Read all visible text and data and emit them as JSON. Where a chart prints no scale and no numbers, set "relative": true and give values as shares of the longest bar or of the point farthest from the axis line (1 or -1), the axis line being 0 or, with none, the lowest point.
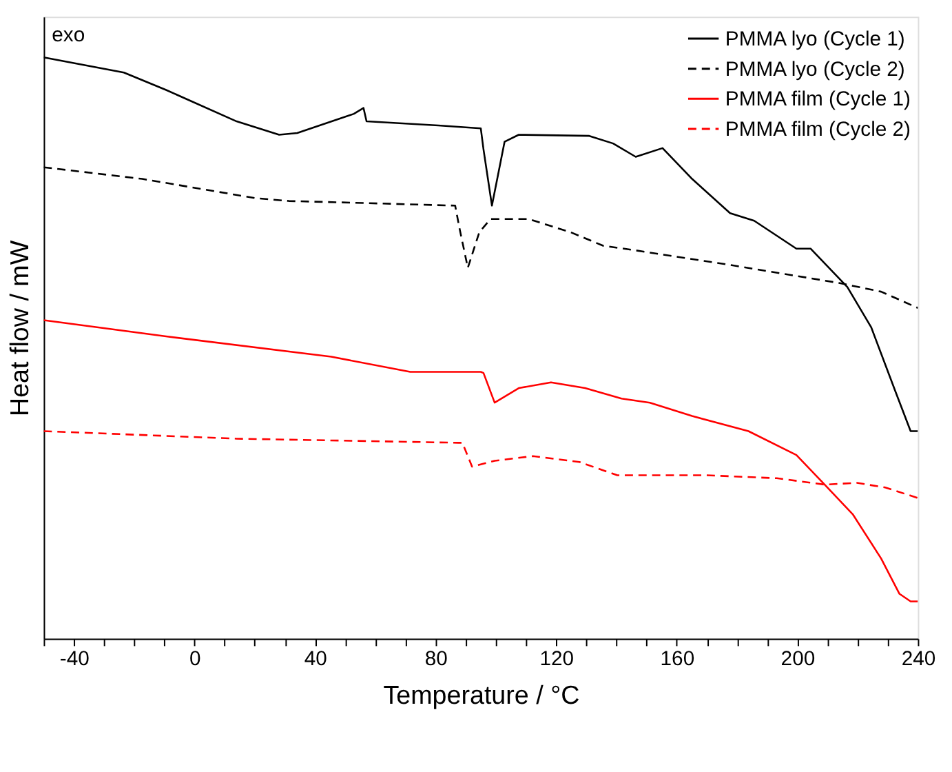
{
  "chart_data": {
    "type": "line",
    "relative": true,
    "xlabel": "Temperature / °C",
    "ylabel": "Heat flow / mW",
    "annotations": [
      "exo"
    ],
    "xlim": [
      -50,
      240
    ],
    "xticks": [
      {
        "value": -50,
        "label": null
      },
      -40,
      {
        "value": -30,
        "label": null
      },
      {
        "value": -20,
        "label": null
      },
      {
        "value": -10,
        "label": null
      },
      0,
      {
        "value": 10,
        "label": null
      },
      {
        "value": 20,
        "label": null
      },
      {
        "value": 30,
        "label": null
      },
      40,
      {
        "value": 50,
        "label": null
      },
      {
        "value": 60,
        "label": null
      },
      {
        "value": 70,
        "label": null
      },
      80,
      {
        "value": 90,
        "label": null
      },
      {
        "value": 100,
        "label": null
      },
      {
        "value": 110,
        "label": null
      },
      120,
      {
        "value": 130,
        "label": null
      },
      {
        "value": 140,
        "label": null
      },
      {
        "value": 150,
        "label": null
      },
      160,
      {
        "value": 170,
        "label": null
      },
      {
        "value": 180,
        "label": null
      },
      {
        "value": 190,
        "label": null
      },
      200,
      {
        "value": 210,
        "label": null
      },
      {
        "value": 220,
        "label": null
      },
      {
        "value": 230,
        "label": null
      },
      240
    ],
    "legend": "top right",
    "grid": false,
    "tick_labels": "x",
    "series": [
      {
        "name": "PMMA lyo (Cycle 1)",
        "color": "#000000",
        "line_style": "solid",
        "x": [
          -50,
          -23.4,
          -9.4,
          14,
          28.1,
          34.1,
          52.9,
          56.1,
          57.1,
          80.9,
          95,
          95.9,
          98.7,
          102.9,
          107.6,
          131,
          138.9,
          146.4,
          155.3,
          165.1,
          177.7,
          185.7,
          199.7,
          204.4,
          216.6,
          224.5,
          232.5,
          237.6,
          240
        ],
        "values": [
          1.0,
          0.974,
          0.944,
          0.89,
          0.867,
          0.87,
          0.903,
          0.913,
          0.89,
          0.883,
          0.878,
          0.842,
          0.745,
          0.855,
          0.867,
          0.865,
          0.852,
          0.829,
          0.844,
          0.791,
          0.732,
          0.719,
          0.671,
          0.671,
          0.605,
          0.536,
          0.426,
          0.357,
          0.357
        ]
      },
      {
        "name": "PMMA lyo (Cycle 2)",
        "color": "#000000",
        "line_style": "dashed",
        "x": [
          -50,
          -17.3,
          20.1,
          31.3,
          52.9,
          86.5,
          87.9,
          90.7,
          94.5,
          98.2,
          110.9,
          124.9,
          135.6,
          146.4,
          177.7,
          213.8,
          227.8,
          240
        ],
        "values": [
          0.811,
          0.791,
          0.758,
          0.753,
          0.75,
          0.745,
          0.707,
          0.638,
          0.699,
          0.722,
          0.722,
          0.699,
          0.676,
          0.668,
          0.643,
          0.612,
          0.597,
          0.569
        ]
      },
      {
        "name": "PMMA film (Cycle 1)",
        "color": "#ff0000",
        "line_style": "solid",
        "x": [
          -50,
          -9.4,
          45.4,
          71.6,
          95,
          95.9,
          99.6,
          107.6,
          118.3,
          129.6,
          141.7,
          151.1,
          165.1,
          183.8,
          199.7,
          209.1,
          218.4,
          227.8,
          233.9,
          237.6,
          240
        ],
        "values": [
          0.548,
          0.52,
          0.485,
          0.459,
          0.459,
          0.457,
          0.406,
          0.431,
          0.441,
          0.431,
          0.413,
          0.406,
          0.383,
          0.357,
          0.316,
          0.265,
          0.214,
          0.138,
          0.077,
          0.064,
          0.064
        ]
      },
      {
        "name": "PMMA film (Cycle 2)",
        "color": "#ff0000",
        "line_style": "dashed",
        "x": [
          -50,
          14,
          87.5,
          88.9,
          92.1,
          99.6,
          112.3,
          127.7,
          140.3,
          169.8,
          193.2,
          209.1,
          219.8,
          229.2,
          240
        ],
        "values": [
          0.357,
          0.344,
          0.337,
          0.337,
          0.296,
          0.306,
          0.314,
          0.304,
          0.281,
          0.281,
          0.276,
          0.265,
          0.268,
          0.26,
          0.242
        ]
      }
    ]
  }
}
